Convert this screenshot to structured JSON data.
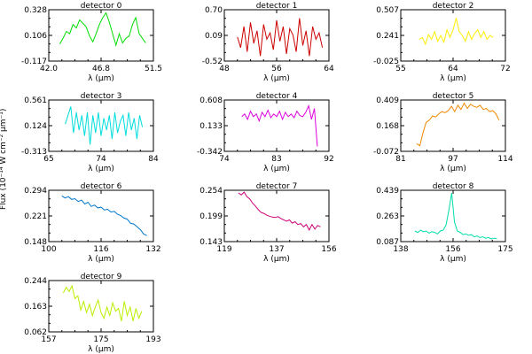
{
  "figure": {
    "ylabel": "Flux (10⁻¹⁴ W cm⁻² µm⁻¹)"
  },
  "chart_data": [
    {
      "type": "line",
      "title": "detector 0",
      "xlabel": "λ (µm)",
      "color": "#00dd00",
      "xlim": [
        42.0,
        51.5
      ],
      "ylim": [
        -0.117,
        0.328
      ],
      "xticks": [
        "42.0",
        "46.8",
        "51.5"
      ],
      "yticks": [
        "-0.117",
        "0.106",
        "0.328"
      ],
      "x": [
        43.0,
        43.3,
        43.6,
        43.9,
        44.2,
        44.5,
        44.8,
        45.1,
        45.4,
        45.7,
        46.0,
        46.3,
        46.6,
        46.9,
        47.2,
        47.5,
        47.8,
        48.1,
        48.4,
        48.7,
        49.0,
        49.3,
        49.6,
        49.9,
        50.2,
        50.5,
        50.8
      ],
      "y": [
        0.03,
        0.08,
        0.14,
        0.12,
        0.2,
        0.17,
        0.24,
        0.21,
        0.18,
        0.1,
        0.05,
        0.12,
        0.2,
        0.26,
        0.3,
        0.22,
        0.12,
        0.02,
        0.12,
        0.04,
        0.08,
        0.1,
        0.2,
        0.26,
        0.12,
        0.08,
        0.04
      ]
    },
    {
      "type": "line",
      "title": "detector 1",
      "xlabel": "λ (µm)",
      "color": "#cc0000",
      "xlim": [
        48,
        64
      ],
      "ylim": [
        -0.52,
        0.7
      ],
      "xticks": [
        "48",
        "56",
        "64"
      ],
      "yticks": [
        "-0.52",
        "0.09",
        "0.70"
      ],
      "x": [
        50.0,
        50.5,
        51.0,
        51.5,
        52.0,
        52.5,
        53.0,
        53.5,
        54.0,
        54.5,
        55.0,
        55.5,
        56.0,
        56.5,
        57.0,
        57.5,
        58.0,
        58.5,
        59.0,
        59.5,
        60.0,
        60.5,
        61.0,
        61.5,
        62.0,
        62.5,
        63.0
      ],
      "y": [
        0.05,
        -0.2,
        0.3,
        -0.3,
        0.4,
        -0.1,
        0.2,
        -0.4,
        0.35,
        0.0,
        0.15,
        -0.25,
        0.45,
        -0.05,
        0.3,
        -0.35,
        0.25,
        0.1,
        -0.3,
        0.5,
        -0.15,
        0.2,
        -0.4,
        0.3,
        0.0,
        0.15,
        -0.2
      ]
    },
    {
      "type": "line",
      "title": "detector 2",
      "xlabel": "λ (µm)",
      "color": "#ffee00",
      "xlim": [
        55,
        72
      ],
      "ylim": [
        -0.025,
        0.507
      ],
      "xticks": [
        "55",
        "64",
        "72"
      ],
      "yticks": [
        "-0.025",
        "0.241",
        "0.507"
      ],
      "x": [
        58.0,
        58.5,
        59.0,
        59.5,
        60.0,
        60.5,
        61.0,
        61.5,
        62.0,
        62.5,
        63.0,
        63.5,
        64.0,
        64.5,
        65.0,
        65.5,
        66.0,
        66.5,
        67.0,
        67.5,
        68.0,
        68.5,
        69.0,
        69.5,
        70.0
      ],
      "y": [
        0.2,
        0.22,
        0.15,
        0.25,
        0.2,
        0.28,
        0.18,
        0.24,
        0.17,
        0.3,
        0.22,
        0.3,
        0.42,
        0.28,
        0.24,
        0.18,
        0.28,
        0.2,
        0.26,
        0.3,
        0.22,
        0.28,
        0.2,
        0.24,
        0.22
      ]
    },
    {
      "type": "line",
      "title": "detector 3",
      "xlabel": "λ (µm)",
      "color": "#00dddd",
      "xlim": [
        65,
        84
      ],
      "ylim": [
        -0.313,
        0.561
      ],
      "xticks": [
        "65",
        "74",
        "84"
      ],
      "yticks": [
        "-0.313",
        "0.124",
        "0.561"
      ],
      "x": [
        68.0,
        68.5,
        69.0,
        69.5,
        70.0,
        70.5,
        71.0,
        71.5,
        72.0,
        72.5,
        73.0,
        73.5,
        74.0,
        74.5,
        75.0,
        75.5,
        76.0,
        76.5,
        77.0,
        77.5,
        78.0,
        78.5,
        79.0,
        79.5,
        80.0,
        80.5,
        81.0,
        81.5,
        82.0
      ],
      "y": [
        0.15,
        0.3,
        0.45,
        0.0,
        0.35,
        0.05,
        0.3,
        -0.05,
        0.35,
        -0.2,
        0.3,
        0.0,
        0.35,
        -0.05,
        0.25,
        0.05,
        0.3,
        -0.1,
        0.35,
        0.0,
        0.2,
        0.3,
        -0.05,
        0.35,
        0.05,
        0.25,
        -0.1,
        0.3,
        0.1
      ]
    },
    {
      "type": "line",
      "title": "detector 4",
      "xlabel": "λ (µm)",
      "color": "#dd00dd",
      "xlim": [
        74,
        92
      ],
      "ylim": [
        -0.342,
        0.608
      ],
      "xticks": [
        "74",
        "83",
        "92"
      ],
      "yticks": [
        "-0.342",
        "0.133",
        "0.608"
      ],
      "x": [
        77.0,
        77.5,
        78.0,
        78.5,
        79.0,
        79.5,
        80.0,
        80.5,
        81.0,
        81.5,
        82.0,
        82.5,
        83.0,
        83.5,
        84.0,
        84.5,
        85.0,
        85.5,
        86.0,
        86.5,
        87.0,
        87.5,
        88.0,
        88.5,
        89.0,
        89.5,
        90.0
      ],
      "y": [
        0.3,
        0.35,
        0.25,
        0.4,
        0.3,
        0.35,
        0.22,
        0.38,
        0.3,
        0.42,
        0.28,
        0.35,
        0.3,
        0.4,
        0.25,
        0.38,
        0.3,
        0.35,
        0.28,
        0.4,
        0.32,
        0.3,
        0.38,
        0.5,
        0.25,
        0.45,
        -0.25
      ]
    },
    {
      "type": "line",
      "title": "detector 5",
      "xlabel": "λ (µm)",
      "color": "#ee8800",
      "xlim": [
        81,
        114
      ],
      "ylim": [
        -0.072,
        0.409
      ],
      "xticks": [
        "81",
        "97",
        "114"
      ],
      "yticks": [
        "-0.072",
        "0.168",
        "0.409"
      ],
      "x": [
        86.0,
        87.0,
        88.0,
        89.0,
        90.0,
        91.0,
        92.0,
        93.0,
        94.0,
        95.0,
        96.0,
        97.0,
        98.0,
        99.0,
        100.0,
        101.0,
        102.0,
        103.0,
        104.0,
        105.0,
        106.0,
        107.0,
        108.0,
        109.0,
        110.0,
        111.0,
        112.0
      ],
      "y": [
        0.0,
        -0.02,
        0.1,
        0.2,
        0.22,
        0.26,
        0.25,
        0.28,
        0.3,
        0.29,
        0.31,
        0.35,
        0.3,
        0.36,
        0.32,
        0.38,
        0.33,
        0.37,
        0.35,
        0.34,
        0.36,
        0.32,
        0.33,
        0.3,
        0.31,
        0.28,
        0.22
      ]
    },
    {
      "type": "line",
      "title": "detector 6",
      "xlabel": "λ (µm)",
      "color": "#0077cc",
      "xlim": [
        100,
        132
      ],
      "ylim": [
        0.148,
        0.294
      ],
      "xticks": [
        "100",
        "116",
        "132"
      ],
      "yticks": [
        "0.148",
        "0.221",
        "0.294"
      ],
      "x": [
        104.0,
        105.0,
        106.0,
        107.0,
        108.0,
        109.0,
        110.0,
        111.0,
        112.0,
        113.0,
        114.0,
        115.0,
        116.0,
        117.0,
        118.0,
        119.0,
        120.0,
        121.0,
        122.0,
        123.0,
        124.0,
        125.0,
        126.0,
        127.0,
        128.0,
        129.0,
        130.0
      ],
      "y": [
        0.278,
        0.272,
        0.276,
        0.268,
        0.27,
        0.262,
        0.266,
        0.255,
        0.26,
        0.248,
        0.252,
        0.244,
        0.246,
        0.238,
        0.24,
        0.232,
        0.234,
        0.226,
        0.222,
        0.215,
        0.212,
        0.2,
        0.198,
        0.19,
        0.182,
        0.17,
        0.165
      ]
    },
    {
      "type": "line",
      "title": "detector 7",
      "xlabel": "λ (µm)",
      "color": "#cc0077",
      "xlim": [
        119,
        156
      ],
      "ylim": [
        0.143,
        0.254
      ],
      "xticks": [
        "119",
        "137",
        "156"
      ],
      "yticks": [
        "0.143",
        "0.199",
        "0.254"
      ],
      "x": [
        124.0,
        125.0,
        126.0,
        127.0,
        128.0,
        129.0,
        130.0,
        131.0,
        132.0,
        133.0,
        134.0,
        135.0,
        136.0,
        137.0,
        138.0,
        139.0,
        140.0,
        141.0,
        142.0,
        143.0,
        144.0,
        145.0,
        146.0,
        147.0,
        148.0,
        149.0,
        150.0,
        151.0,
        152.0,
        153.0
      ],
      "y": [
        0.248,
        0.244,
        0.25,
        0.24,
        0.235,
        0.226,
        0.22,
        0.212,
        0.206,
        0.204,
        0.2,
        0.198,
        0.196,
        0.195,
        0.197,
        0.193,
        0.19,
        0.187,
        0.19,
        0.183,
        0.186,
        0.18,
        0.182,
        0.175,
        0.18,
        0.168,
        0.18,
        0.17,
        0.178,
        0.175
      ]
    },
    {
      "type": "line",
      "title": "detector 8",
      "xlabel": "λ (µm)",
      "color": "#00ddaa",
      "xlim": [
        138,
        175
      ],
      "ylim": [
        0.087,
        0.439
      ],
      "xticks": [
        "138",
        "156",
        "175"
      ],
      "yticks": [
        "0.087",
        "0.263",
        "0.439"
      ],
      "x": [
        143.0,
        144.0,
        145.0,
        146.0,
        147.0,
        148.0,
        149.0,
        150.0,
        151.0,
        152.0,
        153.0,
        154.0,
        155.0,
        156.0,
        157.0,
        158.0,
        159.0,
        160.0,
        161.0,
        162.0,
        163.0,
        164.0,
        165.0,
        166.0,
        167.0,
        168.0,
        169.0,
        170.0,
        171.0,
        172.0
      ],
      "y": [
        0.16,
        0.15,
        0.165,
        0.155,
        0.16,
        0.145,
        0.155,
        0.15,
        0.14,
        0.16,
        0.165,
        0.2,
        0.3,
        0.42,
        0.22,
        0.16,
        0.15,
        0.135,
        0.14,
        0.13,
        0.135,
        0.12,
        0.125,
        0.115,
        0.12,
        0.11,
        0.115,
        0.105,
        0.11,
        0.108
      ]
    },
    {
      "type": "line",
      "title": "detector 9",
      "xlabel": "λ (µm)",
      "color": "#bbee00",
      "xlim": [
        157,
        193
      ],
      "ylim": [
        0.062,
        0.244
      ],
      "xticks": [
        "157",
        "175",
        "193"
      ],
      "yticks": [
        "0.062",
        "0.163",
        "0.244"
      ],
      "x": [
        162.0,
        163.0,
        164.0,
        165.0,
        166.0,
        167.0,
        168.0,
        169.0,
        170.0,
        171.0,
        172.0,
        173.0,
        174.0,
        175.0,
        176.0,
        177.0,
        178.0,
        179.0,
        180.0,
        181.0,
        182.0,
        183.0,
        184.0,
        185.0,
        186.0,
        187.0,
        188.0,
        189.0
      ],
      "y": [
        0.2,
        0.22,
        0.205,
        0.225,
        0.18,
        0.19,
        0.14,
        0.17,
        0.13,
        0.16,
        0.12,
        0.15,
        0.175,
        0.13,
        0.11,
        0.15,
        0.12,
        0.165,
        0.135,
        0.145,
        0.1,
        0.17,
        0.12,
        0.15,
        0.1,
        0.145,
        0.11,
        0.135
      ]
    }
  ]
}
